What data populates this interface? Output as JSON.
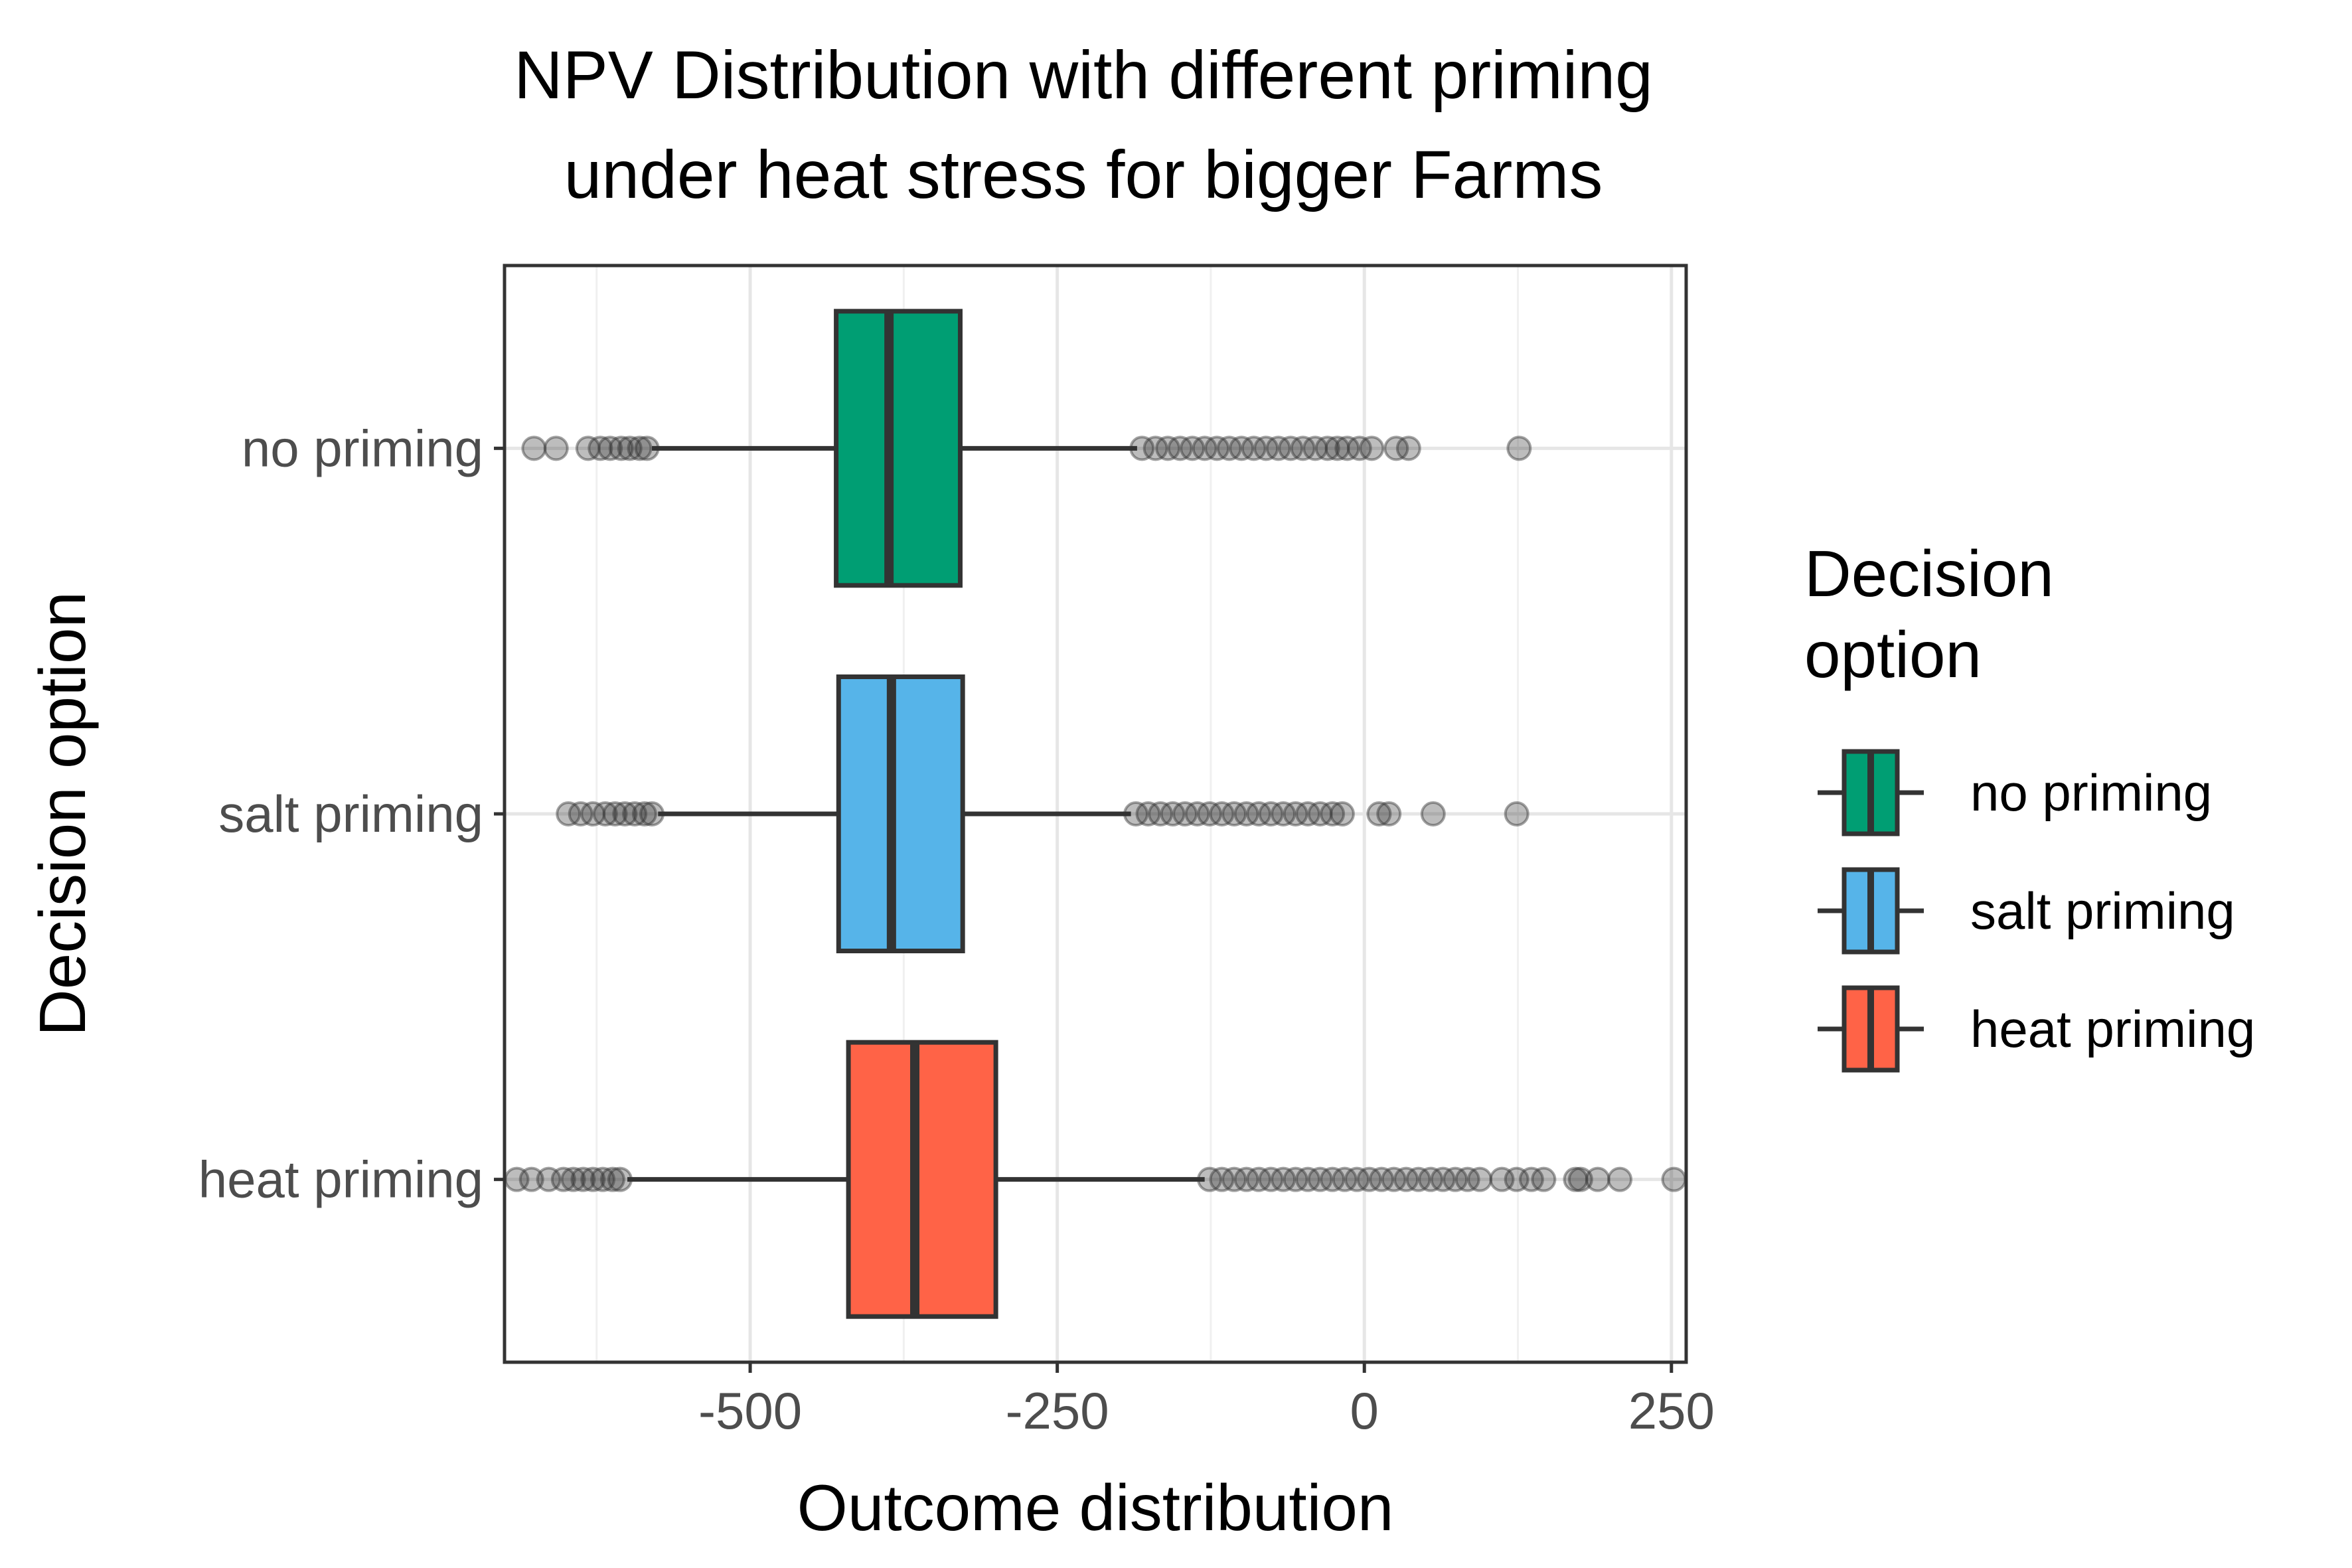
{
  "chart_data": {
    "type": "boxplot",
    "orientation": "horizontal",
    "title": [
      "NPV Distribution with different priming",
      "under heat stress for bigger Farms"
    ],
    "xlabel": "Outcome distribution",
    "ylabel": "Decision option",
    "xlim": [
      -700,
      262
    ],
    "xticks": [
      -500,
      -250,
      0,
      250
    ],
    "xtick_labels": [
      "-500",
      "-250",
      "0",
      "250"
    ],
    "grid": true,
    "legend": {
      "title": [
        "Decision",
        "option"
      ],
      "placement": "right",
      "entries": [
        "no priming",
        "salt priming",
        "heat priming"
      ]
    },
    "categories": [
      "no priming",
      "salt priming",
      "heat priming"
    ],
    "series": [
      {
        "name": "no priming",
        "color": "#009E73",
        "whisker_low": -580,
        "q1": -430,
        "median": -387,
        "q3": -329,
        "whisker_high": -185,
        "outliers": [
          -676,
          -658,
          -632,
          -622,
          -614,
          -605,
          -598,
          -590,
          -584,
          -181,
          -170,
          -160,
          -150,
          -140,
          -130,
          -120,
          -110,
          -100,
          -90,
          -80,
          -70,
          -60,
          -50,
          -40,
          -30,
          -22,
          -14,
          -4,
          6,
          26,
          36,
          126
        ]
      },
      {
        "name": "salt priming",
        "color": "#56B4E9",
        "whisker_low": -575,
        "q1": -428,
        "median": -385,
        "q3": -327,
        "whisker_high": -190,
        "outliers": [
          -648,
          -638,
          -628,
          -618,
          -610,
          -602,
          -594,
          -586,
          -580,
          -186,
          -176,
          -166,
          -156,
          -146,
          -136,
          -126,
          -116,
          -106,
          -96,
          -86,
          -76,
          -66,
          -56,
          -46,
          -36,
          -26,
          -18,
          12,
          20,
          56,
          124
        ]
      },
      {
        "name": "heat priming",
        "color": "#FF6347",
        "whisker_low": -600,
        "q1": -420,
        "median": -366,
        "q3": -300,
        "whisker_high": -130,
        "outliers": [
          -690,
          -678,
          -664,
          -652,
          -644,
          -636,
          -628,
          -620,
          -612,
          -606,
          -126,
          -116,
          -106,
          -96,
          -86,
          -76,
          -66,
          -56,
          -46,
          -36,
          -26,
          -16,
          -6,
          4,
          14,
          24,
          34,
          44,
          54,
          64,
          74,
          84,
          94,
          112,
          124,
          136,
          146,
          172,
          176,
          190,
          208,
          252
        ]
      }
    ]
  }
}
